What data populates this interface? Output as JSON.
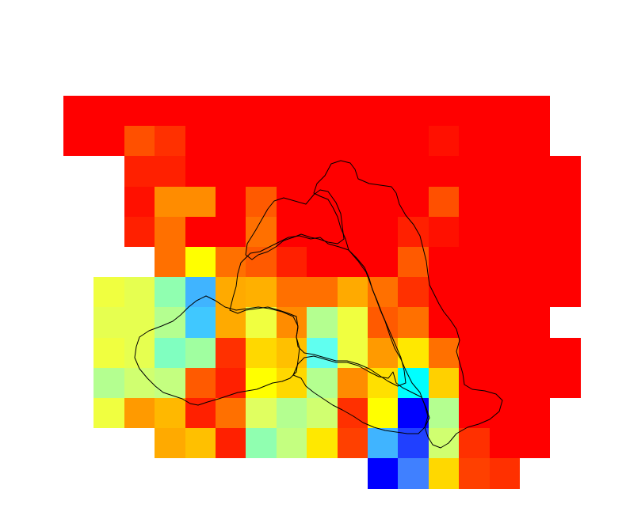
{
  "chart_data": {
    "type": "heatmap",
    "title": "",
    "xlabel": "",
    "ylabel": "",
    "grid": false,
    "legend": "none",
    "colormap": "jet",
    "n_cols": 17,
    "n_rows": 13,
    "outline_color": "#000000",
    "cells": [
      [
        "#ff0000",
        "#ff0000",
        "#ff0000",
        "#ff0000",
        "#ff0000",
        "#ff0000",
        "#ff0000",
        "#ff0000",
        "#ff0000",
        "#ff0000",
        "#ff0000",
        "#ff0000",
        "#ff0000",
        "#ff0000",
        "#ff0000",
        "#ff0000",
        null
      ],
      [
        "#ff0000",
        "#ff0000",
        "#ff5000",
        "#ff3000",
        "#ff0000",
        "#ff0000",
        "#ff0000",
        "#ff0000",
        "#ff0000",
        "#ff0000",
        "#ff0000",
        "#ff0000",
        "#ff1000",
        "#ff0000",
        "#ff0000",
        "#ff0000",
        null
      ],
      [
        null,
        null,
        "#ff2000",
        "#ff2000",
        "#ff0000",
        "#ff0000",
        "#ff0000",
        "#ff0000",
        "#ff0000",
        "#ff0000",
        "#ff0000",
        "#ff0000",
        "#ff0000",
        "#ff0000",
        "#ff0000",
        "#ff0000",
        "#ff0000"
      ],
      [
        null,
        null,
        "#ff1000",
        "#ff8c00",
        "#ff8c00",
        "#ff0000",
        "#ff5a00",
        "#ff0000",
        "#ff0000",
        "#ff0000",
        "#ff0000",
        "#ff0000",
        "#ff5000",
        "#ff0000",
        "#ff0000",
        "#ff0000",
        "#ff0000"
      ],
      [
        null,
        null,
        "#ff2000",
        "#ff7000",
        "#ff0000",
        "#ff0000",
        "#ff7000",
        "#ff0000",
        "#ff0000",
        "#ff0000",
        "#ff0000",
        "#ff2000",
        "#ff1000",
        "#ff0000",
        "#ff0000",
        "#ff0000",
        "#ff0000"
      ],
      [
        null,
        null,
        null,
        "#ff7000",
        "#ffff00",
        "#ff7000",
        "#ff5a00",
        "#ff2000",
        "#ff0000",
        "#ff0000",
        "#ff0000",
        "#ff5a00",
        "#ff0000",
        "#ff0000",
        "#ff0000",
        "#ff0000",
        "#ff0000"
      ],
      [
        null,
        "#f0ff40",
        "#e6ff50",
        "#90ffb0",
        "#40b4ff",
        "#ffaa00",
        "#ffb000",
        "#ff7000",
        "#ff7000",
        "#ffaa00",
        "#ff7000",
        "#ff3000",
        "#ff0000",
        "#ff0000",
        "#ff0000",
        "#ff0000",
        "#ff0000"
      ],
      [
        null,
        "#e6ff50",
        "#e6ff50",
        "#b4ff90",
        "#40c8ff",
        "#ffaa00",
        "#f0ff40",
        "#ff8c00",
        "#b4ff90",
        "#f0ff40",
        "#ff5a00",
        "#ff7000",
        "#ff0000",
        "#ff0000",
        "#ff0000",
        "#ff0000",
        null
      ],
      [
        null,
        "#f0ff40",
        "#e6ff50",
        "#80ffc0",
        "#a0ffa0",
        "#ff3000",
        "#ffd800",
        "#ffc000",
        "#60fff0",
        "#f0ff40",
        "#ff9a00",
        "#ffe800",
        "#ff7000",
        "#ff0000",
        "#ff0000",
        "#ff0000",
        "#ff0000"
      ],
      [
        null,
        "#b4ff90",
        "#d0ff70",
        "#c4ff80",
        "#ff5a00",
        "#ff2000",
        "#ffff00",
        "#ffd800",
        "#b4ff90",
        "#ff8c00",
        "#ffe000",
        "#00ffff",
        "#ffd000",
        "#ff0000",
        "#ff0000",
        "#ff0000",
        "#ff0000"
      ],
      [
        null,
        "#f0ff40",
        "#ff9a00",
        "#ffb800",
        "#ff2000",
        "#ff7000",
        "#e0ff60",
        "#b4ff90",
        "#d0ff70",
        "#ff3000",
        "#ffff00",
        "#0000ff",
        "#b4ff90",
        "#ff0000",
        "#ff0000",
        "#ff0000",
        null
      ],
      [
        null,
        null,
        null,
        "#ffaa00",
        "#ffc000",
        "#ff2000",
        "#90ffb0",
        "#c4ff80",
        "#ffe800",
        "#ff4000",
        "#40b4ff",
        "#2040ff",
        "#d0ff70",
        "#ff3000",
        "#ff0000",
        "#ff0000",
        null
      ],
      [
        null,
        null,
        null,
        null,
        null,
        null,
        null,
        null,
        null,
        null,
        "#0000ff",
        "#4080ff",
        "#ffd800",
        "#ff4000",
        "#ff3000",
        null,
        null
      ]
    ]
  }
}
